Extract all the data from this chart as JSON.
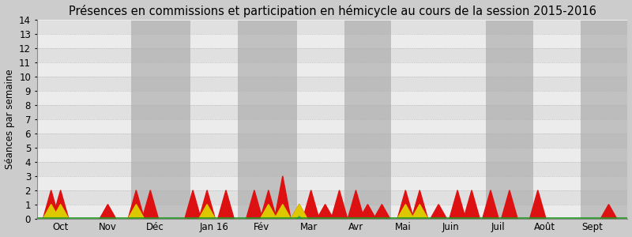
{
  "title": "Présences en commissions et participation en hémicycle au cours de la session 2015-2016",
  "ylabel": "Séances par semaine",
  "ylim": [
    0,
    14
  ],
  "yticks": [
    0,
    1,
    2,
    3,
    4,
    5,
    6,
    7,
    8,
    9,
    10,
    11,
    12,
    13,
    14
  ],
  "month_tick_positions": [
    0.5,
    1.5,
    2.5,
    3.75,
    4.75,
    5.75,
    6.75,
    7.75,
    8.75,
    9.75,
    10.75,
    11.75
  ],
  "month_labels": [
    "Oct",
    "Nov",
    "Déc",
    "Jan 16",
    "Fév",
    "Mar",
    "Avr",
    "Mai",
    "Juin",
    "Juil",
    "Août",
    "Sept"
  ],
  "dark_band_ranges": [
    [
      2.0,
      3.25
    ],
    [
      4.25,
      5.5
    ],
    [
      6.5,
      7.5
    ],
    [
      9.5,
      10.5
    ],
    [
      11.5,
      12.5
    ]
  ],
  "red_color": "#dd1111",
  "yellow_color": "#ddc800",
  "green_color": "#44aa44",
  "green_line_color": "#229922",
  "light_stripe": "#ececec",
  "dark_stripe": "#e0e0e0",
  "fig_bg": "#cccccc",
  "title_fontsize": 10.5,
  "axis_fontsize": 8.5,
  "xlim": [
    0,
    12.5
  ],
  "red_x": [
    0.3,
    0.5,
    0.8,
    1.5,
    2.1,
    2.4,
    2.7,
    3.3,
    3.6,
    4.0,
    4.6,
    4.9,
    5.2,
    5.55,
    5.8,
    6.1,
    6.4,
    6.75,
    7.0,
    7.3,
    7.8,
    8.1,
    8.5,
    8.9,
    9.2,
    9.6,
    10.0,
    10.6,
    11.0,
    11.6,
    12.1
  ],
  "red_y": [
    2,
    2,
    0,
    1,
    2,
    2,
    0,
    2,
    2,
    2,
    2,
    2,
    3,
    1,
    2,
    1,
    2,
    2,
    1,
    1,
    2,
    2,
    1,
    2,
    2,
    2,
    2,
    2,
    0,
    0,
    1
  ],
  "yellow_x": [
    0.3,
    0.5,
    0.8,
    2.1,
    2.4,
    3.6,
    4.9,
    5.2,
    5.55,
    5.8,
    7.8,
    8.1,
    8.9
  ],
  "yellow_y": [
    1,
    1,
    0,
    1,
    0,
    1,
    1,
    1,
    1,
    0,
    1,
    1,
    0
  ],
  "green_x": [
    5.5,
    5.55,
    5.6
  ],
  "green_y": [
    0,
    0.15,
    0
  ]
}
